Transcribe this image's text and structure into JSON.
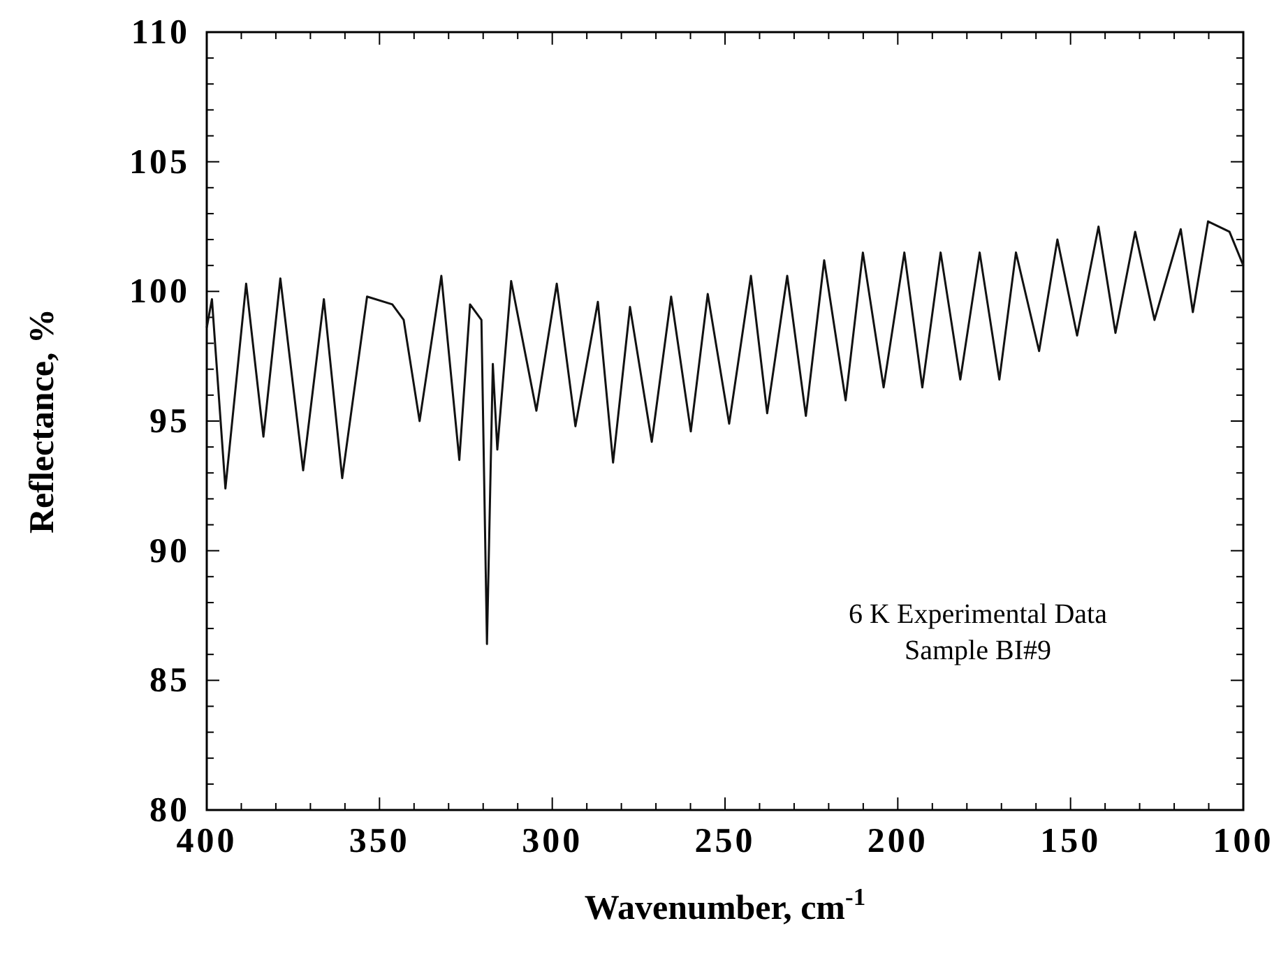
{
  "chart_data": {
    "type": "line",
    "xlabel": "Wavenumber, cm$^{-1}$",
    "ylabel": "Reflectance, %",
    "annotations": [
      "6 K Experimental Data",
      "Sample BI#9"
    ],
    "xlim": [
      400,
      100
    ],
    "ylim": [
      80,
      110
    ],
    "xticks": [
      400,
      {
        "value": 390,
        "label": null
      },
      {
        "value": 380,
        "label": null
      },
      {
        "value": 370,
        "label": null
      },
      {
        "value": 360,
        "label": null
      },
      350,
      {
        "value": 340,
        "label": null
      },
      {
        "value": 330,
        "label": null
      },
      {
        "value": 320,
        "label": null
      },
      {
        "value": 310,
        "label": null
      },
      300,
      {
        "value": 290,
        "label": null
      },
      {
        "value": 280,
        "label": null
      },
      {
        "value": 270,
        "label": null
      },
      {
        "value": 260,
        "label": null
      },
      250,
      {
        "value": 240,
        "label": null
      },
      {
        "value": 230,
        "label": null
      },
      {
        "value": 220,
        "label": null
      },
      {
        "value": 210,
        "label": null
      },
      200,
      {
        "value": 190,
        "label": null
      },
      {
        "value": 180,
        "label": null
      },
      {
        "value": 170,
        "label": null
      },
      {
        "value": 160,
        "label": null
      },
      150,
      {
        "value": 140,
        "label": null
      },
      {
        "value": 130,
        "label": null
      },
      {
        "value": 120,
        "label": null
      },
      {
        "value": 110,
        "label": null
      },
      100
    ],
    "yticks": [
      80,
      {
        "value": 81,
        "label": null
      },
      {
        "value": 82,
        "label": null
      },
      {
        "value": 83,
        "label": null
      },
      {
        "value": 84,
        "label": null
      },
      85,
      {
        "value": 86,
        "label": null
      },
      {
        "value": 87,
        "label": null
      },
      {
        "value": 88,
        "label": null
      },
      {
        "value": 89,
        "label": null
      },
      90,
      {
        "value": 91,
        "label": null
      },
      {
        "value": 92,
        "label": null
      },
      {
        "value": 93,
        "label": null
      },
      {
        "value": 94,
        "label": null
      },
      95,
      {
        "value": 96,
        "label": null
      },
      {
        "value": 97,
        "label": null
      },
      {
        "value": 98,
        "label": null
      },
      {
        "value": 99,
        "label": null
      },
      100,
      {
        "value": 101,
        "label": null
      },
      {
        "value": 102,
        "label": null
      },
      {
        "value": 103,
        "label": null
      },
      {
        "value": 104,
        "label": null
      },
      105,
      {
        "value": 106,
        "label": null
      },
      {
        "value": 107,
        "label": null
      },
      {
        "value": 108,
        "label": null
      },
      {
        "value": 109,
        "label": null
      },
      110
    ],
    "grid": false,
    "marker": "none",
    "line_style": "solid",
    "series": [
      {
        "color": "#111111",
        "x": [
          400,
          398.5,
          394.6,
          388.6,
          383.6,
          378.7,
          372.1,
          366.1,
          360.8,
          353.6,
          346.3,
          343,
          338.4,
          332.1,
          326.9,
          323.8,
          320.5,
          318.9,
          317.2,
          315.9,
          311.9,
          304.6,
          298.7,
          293.3,
          286.8,
          282.4,
          277.5,
          271.2,
          265.6,
          259.9,
          255,
          248.8,
          242.5,
          237.8,
          232,
          226.6,
          221.3,
          215.1,
          210.1,
          204.1,
          198.1,
          192.9,
          187.6,
          181.9,
          176.3,
          170.6,
          165.8,
          159.1,
          153.8,
          148.1,
          141.9,
          137,
          131.3,
          125.7,
          118.1,
          114.6,
          110.2,
          104,
          100
        ],
        "values": [
          98.6,
          99.7,
          92.4,
          100.3,
          94.4,
          100.5,
          93.1,
          99.7,
          92.8,
          99.8,
          99.5,
          98.9,
          95,
          100.6,
          93.5,
          99.5,
          98.9,
          86.4,
          97.2,
          93.9,
          100.4,
          95.4,
          100.3,
          94.8,
          99.6,
          93.4,
          99.4,
          94.2,
          99.8,
          94.6,
          99.9,
          94.9,
          100.6,
          95.3,
          100.6,
          95.2,
          101.2,
          95.8,
          101.5,
          96.3,
          101.5,
          96.3,
          101.5,
          96.6,
          101.5,
          96.6,
          101.5,
          97.7,
          102,
          98.3,
          102.5,
          98.4,
          102.3,
          98.9,
          102.4,
          99.2,
          102.7,
          102.3,
          101
        ]
      }
    ]
  }
}
